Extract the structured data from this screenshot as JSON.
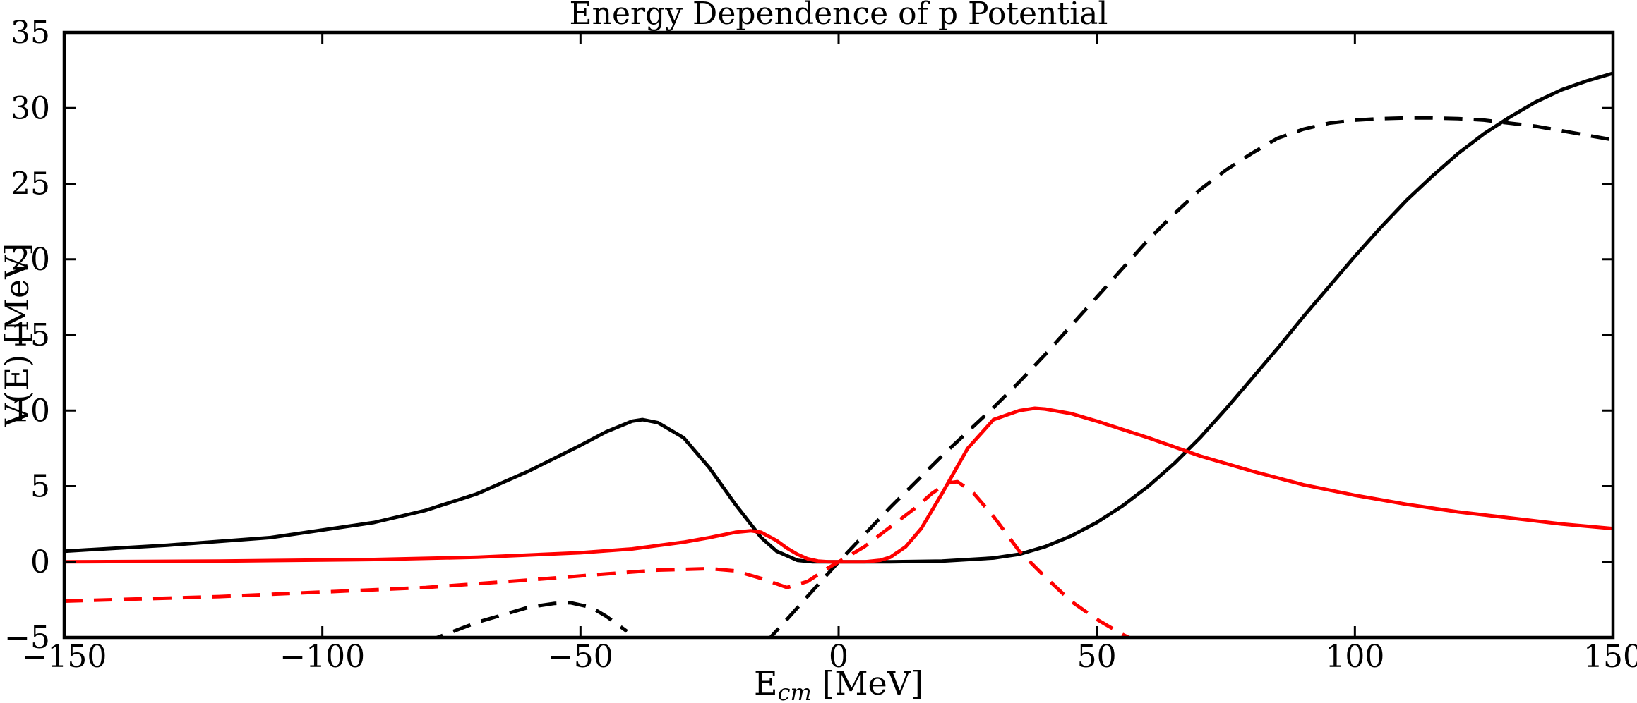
{
  "chart_data": {
    "type": "line",
    "title": "Energy Dependence of p Potential",
    "xlabel_main": "E",
    "xlabel_sub": "cm",
    "xlabel_unit": " [MeV]",
    "ylabel": "V(E) [MeV]",
    "xlim": [
      -150,
      150
    ],
    "ylim": [
      -5,
      35
    ],
    "xticks": [
      -150,
      -100,
      -50,
      0,
      50,
      100,
      150
    ],
    "xtick_labels": [
      "−150",
      "−100",
      "−50",
      "0",
      "50",
      "100",
      "150"
    ],
    "yticks": [
      -5,
      0,
      5,
      10,
      15,
      20,
      25,
      30,
      35
    ],
    "ytick_labels": [
      "−5",
      "0",
      "5",
      "10",
      "15",
      "20",
      "25",
      "30",
      "35"
    ],
    "grid": false,
    "legend": "none",
    "series": [
      {
        "color": "#000000",
        "style": "solid",
        "x": [
          -150,
          -130,
          -110,
          -90,
          -80,
          -70,
          -60,
          -50,
          -45,
          -40,
          -38,
          -35,
          -30,
          -25,
          -20,
          -15,
          -12,
          -8,
          -5,
          0,
          10,
          20,
          30,
          35,
          40,
          45,
          50,
          55,
          60,
          65,
          70,
          75,
          80,
          85,
          90,
          95,
          100,
          105,
          110,
          115,
          120,
          125,
          130,
          135,
          140,
          145,
          150
        ],
        "y": [
          0.7,
          1.1,
          1.6,
          2.6,
          3.4,
          4.5,
          6.0,
          7.7,
          8.6,
          9.3,
          9.4,
          9.2,
          8.2,
          6.2,
          3.8,
          1.6,
          0.7,
          0.1,
          0.0,
          0.0,
          0.0,
          0.05,
          0.25,
          0.5,
          1.0,
          1.7,
          2.6,
          3.7,
          5.0,
          6.5,
          8.2,
          10.1,
          12.1,
          14.1,
          16.2,
          18.2,
          20.2,
          22.1,
          23.9,
          25.5,
          27.0,
          28.3,
          29.4,
          30.4,
          31.2,
          31.8,
          32.3
        ]
      },
      {
        "color": "#000000",
        "style": "dashed",
        "x": [
          -80,
          -70,
          -60,
          -55,
          -52,
          -48,
          -45,
          -41
        ],
        "y": [
          -5.3,
          -4.0,
          -3.0,
          -2.75,
          -2.7,
          -3.0,
          -3.6,
          -4.6
        ]
      },
      {
        "color": "#000000",
        "style": "dashed",
        "x": [
          -14,
          -10,
          -5,
          0,
          5,
          10,
          15,
          20,
          25,
          30,
          35,
          40,
          45,
          50,
          55,
          60,
          65,
          70,
          75,
          80,
          85,
          90,
          95,
          100,
          105,
          110,
          115,
          120,
          125,
          130,
          135,
          140,
          145,
          150
        ],
        "y": [
          -5.3,
          -3.8,
          -1.9,
          0.0,
          1.8,
          3.6,
          5.3,
          7.0,
          8.6,
          10.2,
          11.9,
          13.7,
          15.6,
          17.5,
          19.4,
          21.3,
          23.0,
          24.6,
          25.9,
          27.0,
          28.0,
          28.6,
          29.0,
          29.2,
          29.3,
          29.35,
          29.35,
          29.3,
          29.2,
          29.0,
          28.8,
          28.5,
          28.2,
          27.9
        ]
      },
      {
        "color": "#ff0000",
        "style": "solid",
        "x": [
          -150,
          -120,
          -90,
          -70,
          -50,
          -40,
          -30,
          -25,
          -20,
          -17,
          -15,
          -12,
          -10,
          -8,
          -6,
          -4,
          -2,
          0,
          5,
          8,
          10,
          13,
          16,
          20,
          25,
          30,
          35,
          38,
          40,
          45,
          50,
          60,
          70,
          80,
          90,
          100,
          110,
          120,
          130,
          140,
          150
        ],
        "y": [
          0.0,
          0.05,
          0.15,
          0.3,
          0.6,
          0.85,
          1.3,
          1.6,
          1.95,
          2.05,
          1.95,
          1.4,
          0.9,
          0.5,
          0.2,
          0.05,
          0.0,
          0.0,
          0.0,
          0.1,
          0.3,
          1.0,
          2.2,
          4.5,
          7.5,
          9.4,
          10.0,
          10.15,
          10.1,
          9.8,
          9.3,
          8.2,
          7.0,
          6.0,
          5.1,
          4.4,
          3.8,
          3.3,
          2.9,
          2.5,
          2.2
        ]
      },
      {
        "color": "#ff0000",
        "style": "dashed",
        "x": [
          -150,
          -120,
          -100,
          -80,
          -60,
          -45,
          -35,
          -25,
          -20,
          -15,
          -10,
          -6,
          -2,
          0,
          5,
          10,
          15,
          18,
          21,
          23,
          26,
          30,
          35,
          40,
          45,
          50,
          55,
          58
        ],
        "y": [
          -2.6,
          -2.3,
          -2.0,
          -1.7,
          -1.2,
          -0.8,
          -0.55,
          -0.45,
          -0.6,
          -1.1,
          -1.7,
          -1.3,
          -0.4,
          0.0,
          1.0,
          2.3,
          3.6,
          4.5,
          5.2,
          5.3,
          4.6,
          3.0,
          0.7,
          -1.0,
          -2.6,
          -3.8,
          -4.8,
          -5.3
        ]
      }
    ]
  }
}
